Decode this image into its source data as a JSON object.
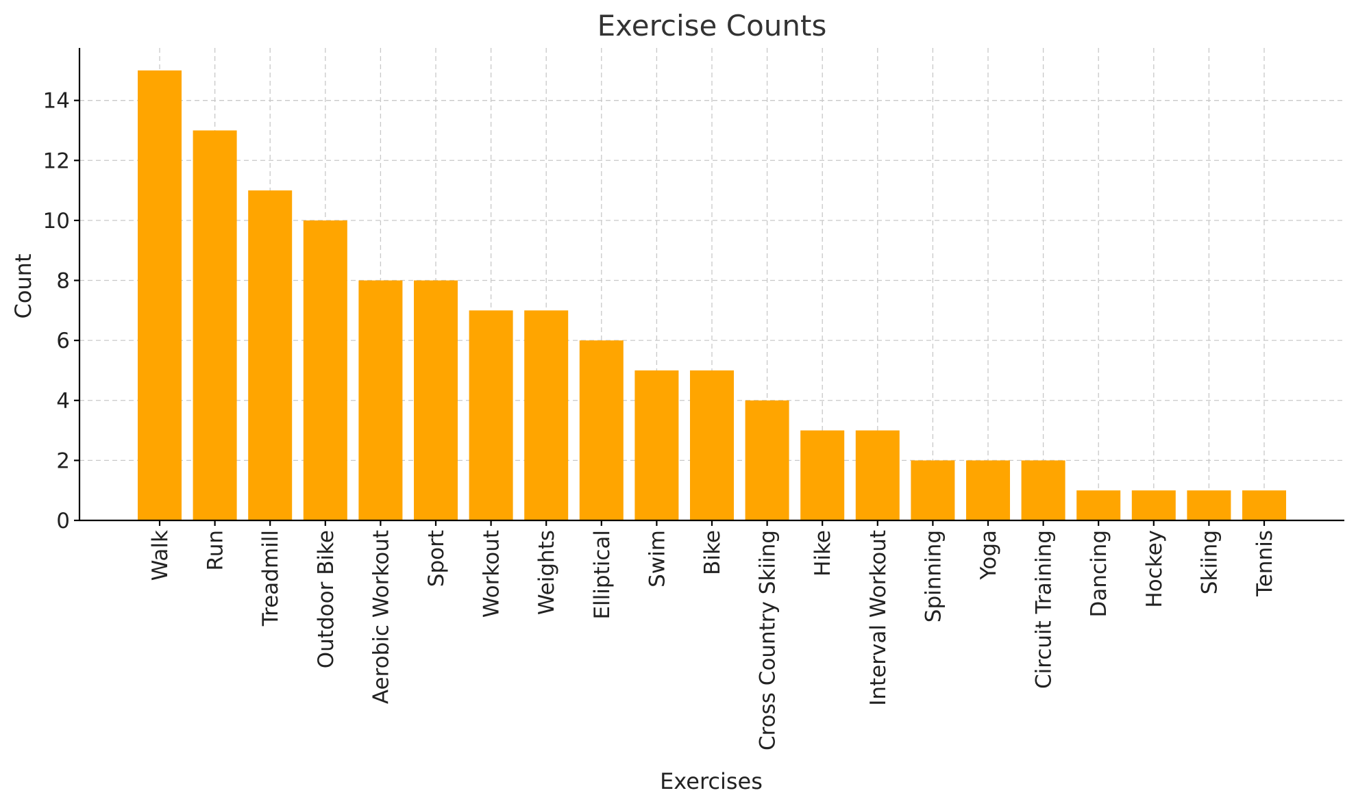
{
  "chart_data": {
    "type": "bar",
    "title": "Exercise Counts",
    "xlabel": "Exercises",
    "ylabel": "Count",
    "categories": [
      "Walk",
      "Run",
      "Treadmill",
      "Outdoor Bike",
      "Aerobic Workout",
      "Sport",
      "Workout",
      "Weights",
      "Elliptical",
      "Swim",
      "Bike",
      "Cross Country Skiing",
      "Hike",
      "Interval Workout",
      "Spinning",
      "Yoga",
      "Circuit Training",
      "Dancing",
      "Hockey",
      "Skiing",
      "Tennis"
    ],
    "values": [
      15,
      13,
      11,
      10,
      8,
      8,
      7,
      7,
      6,
      5,
      5,
      4,
      3,
      3,
      2,
      2,
      2,
      1,
      1,
      1,
      1
    ],
    "ylim": [
      0,
      15.75
    ],
    "yticks": [
      0,
      2,
      4,
      6,
      8,
      10,
      12,
      14
    ],
    "grid": true,
    "bar_color": "#FFA500"
  }
}
